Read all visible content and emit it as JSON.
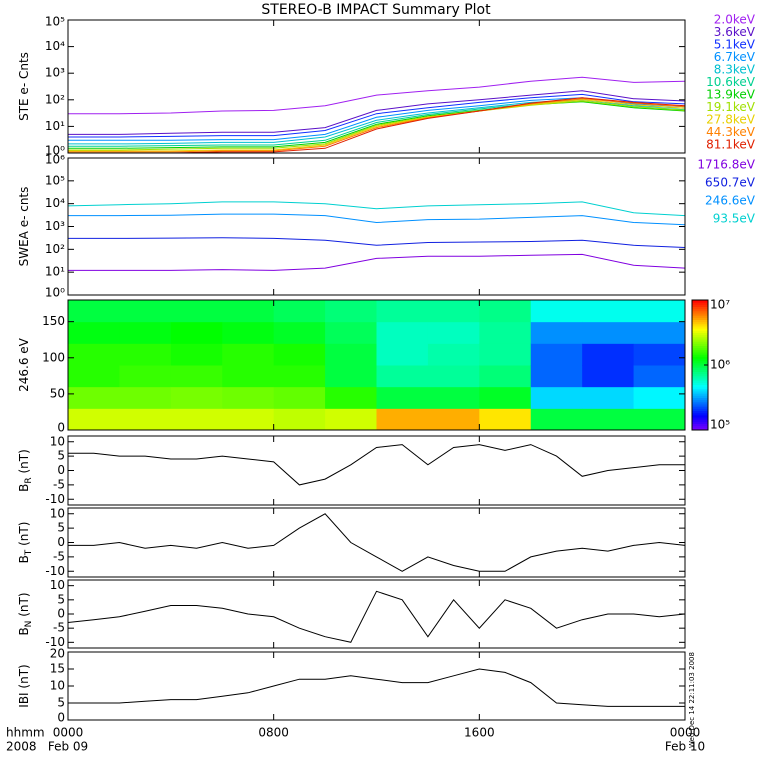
{
  "title": "STEREO-B IMPACT Summary Plot",
  "footnote": "Wed Dec 14 22:11:03 2008",
  "chart_data": [
    {
      "type": "line",
      "ylabel": "STE e- Cnts",
      "yscale": "log",
      "ylim": [
        1,
        100000
      ],
      "xlim": [
        0,
        24
      ],
      "yticks": [
        {
          "value": 1,
          "label": "10⁰"
        },
        {
          "value": 10,
          "label": "10¹"
        },
        {
          "value": 100,
          "label": "10²"
        },
        {
          "value": 1000,
          "label": "10³"
        },
        {
          "value": 10000,
          "label": "10⁴"
        },
        {
          "value": 100000,
          "label": "10⁵"
        }
      ],
      "x": [
        0,
        2,
        4,
        6,
        8,
        10,
        12,
        14,
        16,
        18,
        20,
        22,
        24
      ],
      "series": [
        {
          "name": "2.0keV",
          "color": "#a020f0",
          "values": [
            30,
            30,
            32,
            38,
            40,
            60,
            150,
            220,
            300,
            500,
            700,
            450,
            500
          ]
        },
        {
          "name": "3.6keV",
          "color": "#5a10c8",
          "values": [
            5,
            5,
            5.5,
            6,
            6,
            9,
            40,
            70,
            100,
            150,
            220,
            110,
            90
          ]
        },
        {
          "name": "5.1keV",
          "color": "#1030ff",
          "values": [
            4,
            4,
            4.2,
            4.5,
            4.5,
            7,
            30,
            50,
            80,
            120,
            160,
            85,
            70
          ]
        },
        {
          "name": "6.7keV",
          "color": "#0090ff",
          "values": [
            3,
            3,
            3,
            3.2,
            3.2,
            5,
            22,
            40,
            60,
            95,
            120,
            70,
            55
          ]
        },
        {
          "name": "8.3keV",
          "color": "#00c0d0",
          "values": [
            2.2,
            2.2,
            2.3,
            2.5,
            2.5,
            4,
            17,
            32,
            50,
            80,
            100,
            60,
            48
          ]
        },
        {
          "name": "10.6keV",
          "color": "#00d090",
          "values": [
            1.8,
            1.8,
            1.9,
            2,
            2,
            3,
            14,
            28,
            45,
            70,
            90,
            55,
            42
          ]
        },
        {
          "name": "13.9keV",
          "color": "#00d000",
          "values": [
            1.5,
            1.5,
            1.6,
            1.7,
            1.7,
            2.5,
            12,
            25,
            40,
            65,
            85,
            50,
            38
          ]
        },
        {
          "name": "19.1keV",
          "color": "#a0e000",
          "values": [
            1.3,
            1.3,
            1.4,
            1.5,
            1.5,
            2.2,
            11,
            23,
            38,
            62,
            90,
            55,
            40
          ]
        },
        {
          "name": "27.8keV",
          "color": "#e8d000",
          "values": [
            1.2,
            1.2,
            1.2,
            1.3,
            1.3,
            2,
            10,
            22,
            38,
            65,
            100,
            65,
            48
          ]
        },
        {
          "name": "44.3keV",
          "color": "#ff8000",
          "values": [
            1.1,
            1.1,
            1.1,
            1.2,
            1.2,
            1.8,
            9,
            21,
            38,
            70,
            110,
            75,
            55
          ]
        },
        {
          "name": "81.1keV",
          "color": "#e02000",
          "values": [
            1,
            1,
            1,
            1.1,
            1.1,
            1.5,
            8,
            20,
            38,
            75,
            120,
            80,
            60
          ]
        }
      ]
    },
    {
      "type": "line",
      "ylabel": "SWEA e- cnts",
      "yscale": "log",
      "ylim": [
        1,
        1000000
      ],
      "xlim": [
        0,
        24
      ],
      "yticks": [
        {
          "value": 1,
          "label": "10⁰"
        },
        {
          "value": 10,
          "label": "10¹"
        },
        {
          "value": 100,
          "label": "10²"
        },
        {
          "value": 1000,
          "label": "10³"
        },
        {
          "value": 10000,
          "label": "10⁴"
        },
        {
          "value": 100000,
          "label": "10⁵"
        },
        {
          "value": 1000000,
          "label": "10⁶"
        }
      ],
      "x": [
        0,
        2,
        4,
        6,
        8,
        10,
        12,
        14,
        16,
        18,
        20,
        22,
        24
      ],
      "series": [
        {
          "name": "1716.8eV",
          "color": "#8000e0",
          "values": [
            12,
            12,
            12,
            13,
            12,
            15,
            40,
            50,
            50,
            55,
            60,
            20,
            15
          ]
        },
        {
          "name": "650.7eV",
          "color": "#1020e0",
          "values": [
            300,
            300,
            310,
            320,
            300,
            250,
            150,
            200,
            210,
            220,
            250,
            150,
            120
          ]
        },
        {
          "name": "246.6eV",
          "color": "#0090ff",
          "values": [
            3000,
            3000,
            3100,
            3500,
            3500,
            3000,
            1500,
            2000,
            2100,
            2500,
            3000,
            1500,
            1200
          ]
        },
        {
          "name": "93.5eV",
          "color": "#00d0d0",
          "values": [
            8000,
            9000,
            10000,
            12000,
            12000,
            10000,
            6000,
            8000,
            9000,
            10000,
            12000,
            4000,
            3000
          ]
        }
      ]
    },
    {
      "type": "heatmap",
      "ylabel": "246.6 eV",
      "ylim": [
        0,
        180
      ],
      "xlim": [
        0,
        24
      ],
      "yticks": [
        0,
        50,
        100,
        150
      ],
      "zscale": "log",
      "zlim": [
        100000,
        10000000
      ],
      "zticks": [
        {
          "value": 100000,
          "label": "10⁵"
        },
        {
          "value": 1000000,
          "label": "10⁶"
        },
        {
          "value": 10000000,
          "label": "10⁷"
        }
      ],
      "x_edges": [
        0,
        2,
        4,
        6,
        8,
        10,
        12,
        14,
        16,
        18,
        20,
        22,
        24
      ],
      "y_edges": [
        0,
        30,
        60,
        90,
        120,
        150,
        180
      ],
      "z": [
        [
          3000000,
          2000000,
          1500000,
          1500000,
          1200000,
          1000000
        ],
        [
          3000000,
          2000000,
          1600000,
          1500000,
          1200000,
          1000000
        ],
        [
          3000000,
          2100000,
          1600000,
          1400000,
          1300000,
          1000000
        ],
        [
          3000000,
          2000000,
          1500000,
          1500000,
          1200000,
          1000000
        ],
        [
          2800000,
          1900000,
          1500000,
          1400000,
          1100000,
          900000
        ],
        [
          3000000,
          1500000,
          1000000,
          1000000,
          900000,
          800000
        ],
        [
          5000000,
          1000000,
          700000,
          600000,
          600000,
          700000
        ],
        [
          5000000,
          1000000,
          700000,
          650000,
          600000,
          700000
        ],
        [
          4000000,
          1100000,
          800000,
          700000,
          700000,
          750000
        ],
        [
          1000000,
          400000,
          250000,
          250000,
          300000,
          500000
        ],
        [
          1000000,
          400000,
          200000,
          200000,
          300000,
          500000
        ],
        [
          1000000,
          450000,
          250000,
          220000,
          300000,
          500000
        ]
      ]
    },
    {
      "type": "line",
      "ylabel": "B",
      "ylabel_sub": "R",
      "ylabel_unit": " (nT)",
      "ylim": [
        -12,
        12
      ],
      "xlim": [
        0,
        24
      ],
      "yticks": [
        -10,
        -5,
        0,
        5,
        10
      ],
      "x": [
        0,
        1,
        2,
        3,
        4,
        5,
        6,
        7,
        8,
        9,
        10,
        11,
        12,
        13,
        14,
        15,
        16,
        17,
        18,
        19,
        20,
        21,
        22,
        23,
        24
      ],
      "series": [
        {
          "color": "#000000",
          "values": [
            6,
            6,
            5,
            5,
            4,
            4,
            5,
            4,
            3,
            -5,
            -3,
            2,
            8,
            9,
            2,
            8,
            9,
            7,
            9,
            5,
            -2,
            0,
            1,
            2,
            2
          ]
        }
      ]
    },
    {
      "type": "line",
      "ylabel": "B",
      "ylabel_sub": "T",
      "ylabel_unit": " (nT)",
      "ylim": [
        -12,
        12
      ],
      "xlim": [
        0,
        24
      ],
      "yticks": [
        -10,
        -5,
        0,
        5,
        10
      ],
      "x": [
        0,
        1,
        2,
        3,
        4,
        5,
        6,
        7,
        8,
        9,
        10,
        11,
        12,
        13,
        14,
        15,
        16,
        17,
        18,
        19,
        20,
        21,
        22,
        23,
        24
      ],
      "series": [
        {
          "color": "#000000",
          "values": [
            -1,
            -1,
            0,
            -2,
            -1,
            -2,
            0,
            -2,
            -1,
            5,
            10,
            0,
            -5,
            -10,
            -5,
            -8,
            -10,
            -10,
            -5,
            -3,
            -2,
            -3,
            -1,
            0,
            -1
          ]
        }
      ]
    },
    {
      "type": "line",
      "ylabel": "B",
      "ylabel_sub": "N",
      "ylabel_unit": " (nT)",
      "ylim": [
        -12,
        12
      ],
      "xlim": [
        0,
        24
      ],
      "yticks": [
        -10,
        -5,
        0,
        5,
        10
      ],
      "x": [
        0,
        1,
        2,
        3,
        4,
        5,
        6,
        7,
        8,
        9,
        10,
        11,
        12,
        13,
        14,
        15,
        16,
        17,
        18,
        19,
        20,
        21,
        22,
        23,
        24
      ],
      "series": [
        {
          "color": "#000000",
          "values": [
            -3,
            -2,
            -1,
            1,
            3,
            3,
            2,
            0,
            -1,
            -5,
            -8,
            -10,
            8,
            5,
            -8,
            5,
            -5,
            5,
            2,
            -5,
            -2,
            0,
            0,
            -1,
            0
          ]
        }
      ]
    },
    {
      "type": "line",
      "ylabel": "IBI (nT)",
      "ylim": [
        0,
        20
      ],
      "xlim": [
        0,
        24
      ],
      "yticks": [
        0,
        5,
        10,
        15,
        20
      ],
      "x": [
        0,
        1,
        2,
        3,
        4,
        5,
        6,
        7,
        8,
        9,
        10,
        11,
        12,
        13,
        14,
        15,
        16,
        17,
        18,
        19,
        20,
        21,
        22,
        23,
        24
      ],
      "series": [
        {
          "color": "#000000",
          "values": [
            5,
            5,
            5,
            5.5,
            6,
            6,
            7,
            8,
            10,
            12,
            12,
            13,
            12,
            11,
            11,
            13,
            15,
            14,
            11,
            5,
            4.5,
            4,
            4,
            4,
            4
          ]
        }
      ],
      "xticks": [
        {
          "value": 0,
          "label": "0000"
        },
        {
          "value": 8,
          "label": "0800"
        },
        {
          "value": 16,
          "label": "1600"
        },
        {
          "value": 24,
          "label": "0000"
        }
      ],
      "date_labels": [
        {
          "value": 0,
          "label": "Feb 09"
        },
        {
          "value": 24,
          "label": "Feb 10"
        }
      ],
      "xlabel_lines": [
        "hhmm",
        "2008"
      ]
    }
  ]
}
